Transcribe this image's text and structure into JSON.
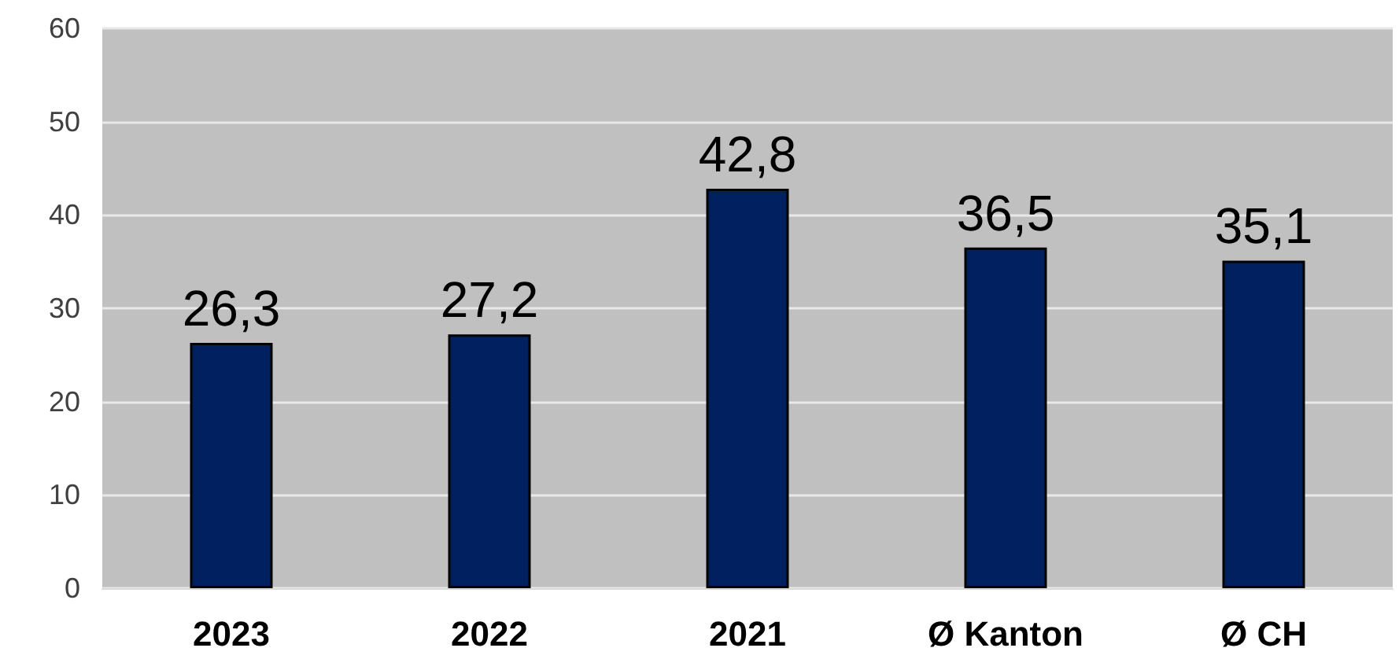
{
  "chart_data": {
    "type": "bar",
    "categories": [
      "2023",
      "2022",
      "2021",
      "Ø Kanton",
      "Ø CH"
    ],
    "values": [
      26.3,
      27.2,
      42.8,
      36.5,
      35.1
    ],
    "value_labels": [
      "26,3",
      "27,2",
      "42,8",
      "36,5",
      "35,1"
    ],
    "color": "#002060",
    "ylim": [
      0,
      60
    ],
    "yticks": [
      0,
      10,
      20,
      30,
      40,
      50,
      60
    ],
    "grid": "y"
  }
}
